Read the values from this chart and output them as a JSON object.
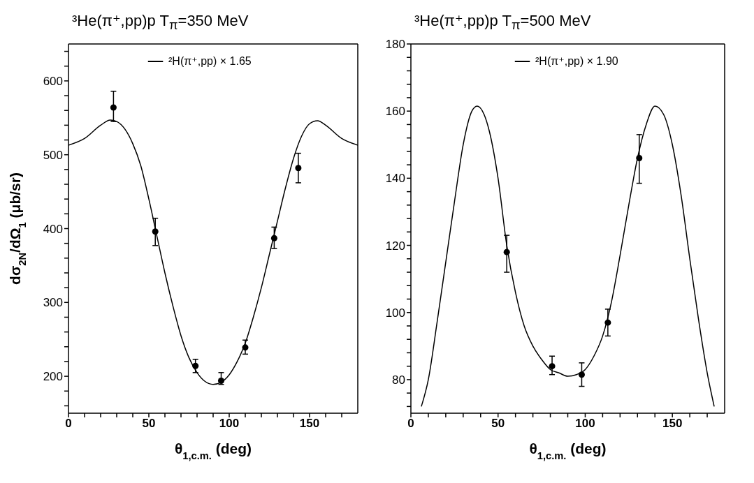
{
  "chart_data": [
    {
      "type": "scatter",
      "title": "³He(π⁺,pp)p  T$_{π}$=350 MeV",
      "xlabel": "θ$_{1,c.m.}$ (deg)",
      "ylabel": "dσ$_{2N}$/dΩ$_{1}$ (μb/sr)",
      "xlim": [
        0,
        180
      ],
      "ylim": [
        150,
        650
      ],
      "xticks": [
        0,
        {
          "value": 10,
          "label": null
        },
        {
          "value": 20,
          "label": null
        },
        {
          "value": 30,
          "label": null
        },
        {
          "value": 40,
          "label": null
        },
        50,
        {
          "value": 60,
          "label": null
        },
        {
          "value": 70,
          "label": null
        },
        {
          "value": 80,
          "label": null
        },
        {
          "value": 90,
          "label": null
        },
        100,
        {
          "value": 110,
          "label": null
        },
        {
          "value": 120,
          "label": null
        },
        {
          "value": 130,
          "label": null
        },
        {
          "value": 140,
          "label": null
        },
        150,
        {
          "value": 160,
          "label": null
        },
        {
          "value": 170,
          "label": null
        }
      ],
      "yticks": [
        {
          "value": 160,
          "label": null
        },
        {
          "value": 180,
          "label": null
        },
        200,
        {
          "value": 220,
          "label": null
        },
        {
          "value": 240,
          "label": null
        },
        {
          "value": 260,
          "label": null
        },
        {
          "value": 280,
          "label": null
        },
        300,
        {
          "value": 320,
          "label": null
        },
        {
          "value": 340,
          "label": null
        },
        {
          "value": 360,
          "label": null
        },
        {
          "value": 380,
          "label": null
        },
        400,
        {
          "value": 420,
          "label": null
        },
        {
          "value": 440,
          "label": null
        },
        {
          "value": 460,
          "label": null
        },
        {
          "value": 480,
          "label": null
        },
        500,
        {
          "value": 520,
          "label": null
        },
        {
          "value": 540,
          "label": null
        },
        {
          "value": 560,
          "label": null
        },
        {
          "value": 580,
          "label": null
        },
        600,
        {
          "value": 620,
          "label": null
        },
        {
          "value": 640,
          "label": null
        }
      ],
      "marker": "circle",
      "legend": "top",
      "series": [
        {
          "color": "#000000",
          "x": [
            28,
            54,
            79,
            95,
            110,
            128,
            143
          ],
          "values": [
            564,
            396,
            214,
            194,
            239,
            387,
            482
          ],
          "errors": [
            [
              545,
              586
            ],
            [
              377,
              414
            ],
            [
              205,
              223
            ],
            [
              189,
              205
            ],
            [
              230,
              249
            ],
            [
              373,
              402
            ],
            [
              462,
              502
            ]
          ]
        },
        {
          "type": "line",
          "name": "²H(π⁺,pp) × 1.65",
          "color": "#000000",
          "marker": "none",
          "x": [
            0,
            10,
            20,
            26,
            30,
            35,
            40,
            45,
            50,
            55,
            60,
            65,
            70,
            75,
            80,
            85,
            90,
            95,
            100,
            105,
            110,
            115,
            120,
            125,
            130,
            135,
            140,
            145,
            150,
            155,
            160,
            170,
            180
          ],
          "values": [
            513,
            522,
            540,
            547,
            545,
            535,
            515,
            485,
            440,
            390,
            340,
            295,
            255,
            225,
            205,
            193,
            189,
            192,
            202,
            220,
            245,
            280,
            320,
            365,
            410,
            455,
            495,
            525,
            542,
            546,
            540,
            522,
            513
          ]
        }
      ]
    },
    {
      "type": "scatter",
      "title": "³He(π⁺,pp)p  T$_{π}$=500 MeV",
      "xlabel": "θ$_{1,c.m.}$ (deg)",
      "xlim": [
        0,
        180
      ],
      "ylim": [
        70,
        180
      ],
      "xticks": [
        0,
        {
          "value": 10,
          "label": null
        },
        {
          "value": 20,
          "label": null
        },
        {
          "value": 30,
          "label": null
        },
        {
          "value": 40,
          "label": null
        },
        50,
        {
          "value": 60,
          "label": null
        },
        {
          "value": 70,
          "label": null
        },
        {
          "value": 80,
          "label": null
        },
        {
          "value": 90,
          "label": null
        },
        100,
        {
          "value": 110,
          "label": null
        },
        {
          "value": 120,
          "label": null
        },
        {
          "value": 130,
          "label": null
        },
        {
          "value": 140,
          "label": null
        },
        150,
        {
          "value": 160,
          "label": null
        },
        {
          "value": 170,
          "label": null
        }
      ],
      "yticks": [
        {
          "value": 72,
          "label": null
        },
        {
          "value": 76,
          "label": null
        },
        80,
        {
          "value": 84,
          "label": null
        },
        {
          "value": 88,
          "label": null
        },
        {
          "value": 92,
          "label": null
        },
        {
          "value": 96,
          "label": null
        },
        100,
        {
          "value": 104,
          "label": null
        },
        {
          "value": 108,
          "label": null
        },
        {
          "value": 112,
          "label": null
        },
        {
          "value": 116,
          "label": null
        },
        120,
        {
          "value": 124,
          "label": null
        },
        {
          "value": 128,
          "label": null
        },
        {
          "value": 132,
          "label": null
        },
        {
          "value": 136,
          "label": null
        },
        140,
        {
          "value": 144,
          "label": null
        },
        {
          "value": 148,
          "label": null
        },
        {
          "value": 152,
          "label": null
        },
        {
          "value": 156,
          "label": null
        },
        160,
        {
          "value": 164,
          "label": null
        },
        {
          "value": 168,
          "label": null
        },
        {
          "value": 172,
          "label": null
        },
        {
          "value": 176,
          "label": null
        },
        180
      ],
      "marker": "circle",
      "legend": "top",
      "series": [
        {
          "color": "#000000",
          "x": [
            55,
            81,
            98,
            113,
            131
          ],
          "values": [
            118,
            84,
            81.5,
            97,
            146
          ],
          "errors": [
            [
              112,
              123
            ],
            [
              81.5,
              87
            ],
            [
              78,
              85
            ],
            [
              93,
              101
            ],
            [
              138.5,
              153
            ]
          ]
        },
        {
          "type": "line",
          "name": "²H(π⁺,pp) × 1.90",
          "color": "#000000",
          "marker": "none",
          "x": [
            6,
            10,
            15,
            20,
            25,
            30,
            35,
            38,
            42,
            45,
            50,
            55,
            60,
            65,
            70,
            75,
            80,
            85,
            90,
            95,
            100,
            105,
            110,
            115,
            120,
            125,
            130,
            135,
            140,
            145,
            150,
            155,
            160,
            165,
            170,
            174
          ],
          "values": [
            72,
            80,
            97,
            115,
            133,
            150,
            160,
            161.5,
            159,
            154,
            140,
            120,
            106,
            96,
            90,
            86,
            83,
            82,
            81,
            81.5,
            83,
            87,
            93,
            103,
            117,
            132,
            146,
            156,
            161.5,
            159,
            150,
            135,
            116,
            98,
            82,
            72
          ]
        }
      ]
    }
  ]
}
